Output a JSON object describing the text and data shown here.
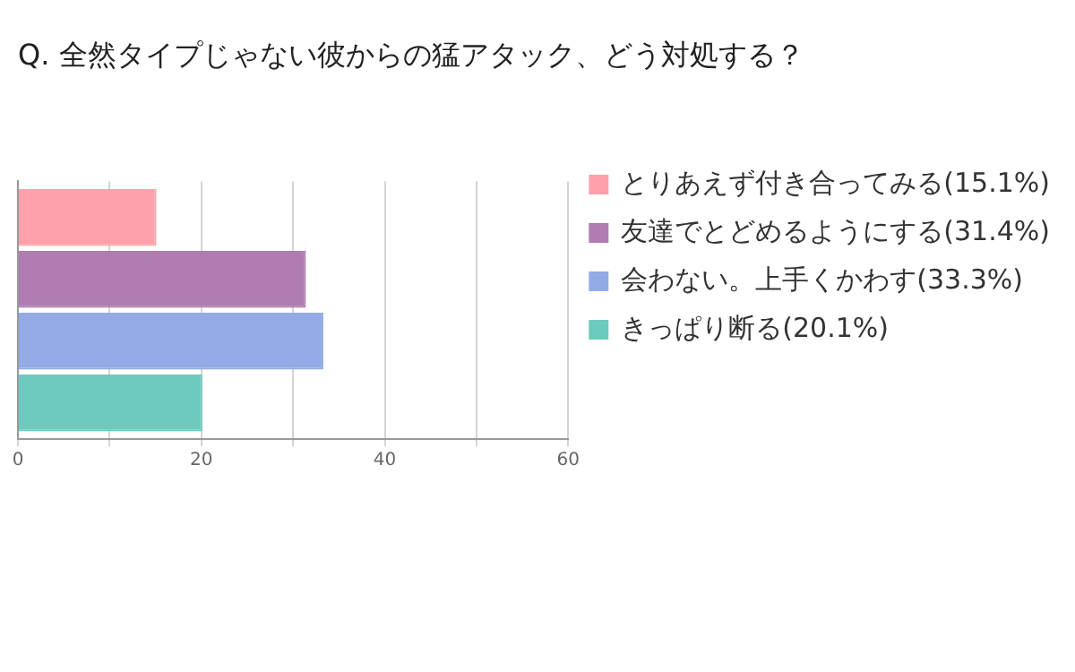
{
  "chart_data": {
    "type": "bar",
    "orientation": "horizontal",
    "title": "Q. 全然タイプじゃない彼からの猛アタック、どう対処する？",
    "categories": [
      null
    ],
    "series": [
      {
        "name": "とりあえず付き合ってみる(15.1%)",
        "color": "#ffa0aa",
        "values": [
          15.1
        ]
      },
      {
        "name": "友達でとどめるようにする(31.4%)",
        "color": "#b07cb2",
        "values": [
          31.4
        ]
      },
      {
        "name": "会わない。上手くかわす(33.3%)",
        "color": "#92aae6",
        "values": [
          33.3
        ]
      },
      {
        "name": "きっぱり断る(20.1%)",
        "color": "#6ccabe",
        "values": [
          20.1
        ]
      }
    ],
    "xlim": [
      0,
      60
    ],
    "xticks": [
      0,
      {
        "value": 10,
        "label": null
      },
      20,
      {
        "value": 30,
        "label": null
      },
      40,
      {
        "value": 50,
        "label": null
      },
      60
    ],
    "tick_labels": "x",
    "grid": "x",
    "legend": "right"
  }
}
